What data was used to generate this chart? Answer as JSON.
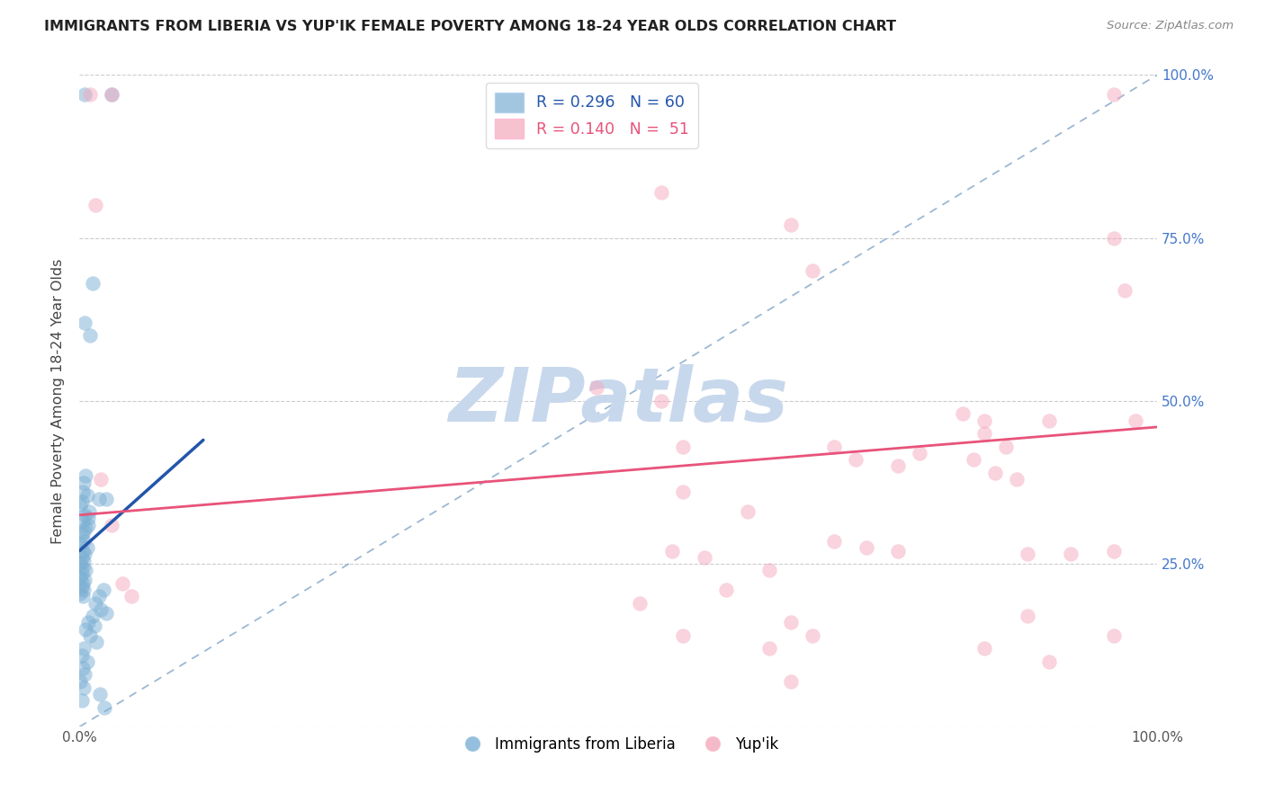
{
  "title": "IMMIGRANTS FROM LIBERIA VS YUP'IK FEMALE POVERTY AMONG 18-24 YEAR OLDS CORRELATION CHART",
  "source": "Source: ZipAtlas.com",
  "ylabel": "Female Poverty Among 18-24 Year Olds",
  "xlim": [
    0,
    1
  ],
  "ylim": [
    0,
    1
  ],
  "xticks": [
    0,
    0.25,
    0.5,
    0.75,
    1.0
  ],
  "yticks": [
    0,
    0.25,
    0.5,
    0.75,
    1.0
  ],
  "xticklabels": [
    "0.0%",
    "",
    "",
    "",
    "100.0%"
  ],
  "yticklabels_left": [
    "",
    "",
    "",
    "",
    ""
  ],
  "yticklabels_right": [
    "",
    "25.0%",
    "50.0%",
    "75.0%",
    "100.0%"
  ],
  "legend_blue_r": "R = 0.296",
  "legend_blue_n": "N = 60",
  "legend_pink_r": "R = 0.140",
  "legend_pink_n": "N =  51",
  "blue_scatter_color": "#7BAFD4",
  "pink_scatter_color": "#F4A8BC",
  "blue_line_color": "#2255AA",
  "pink_line_color": "#E8537A",
  "diagonal_color": "#9BB8D4",
  "watermark_text": "ZIPatlas",
  "watermark_color": "#C8D8EC",
  "blue_points": [
    [
      0.005,
      0.97
    ],
    [
      0.03,
      0.97
    ],
    [
      0.012,
      0.68
    ],
    [
      0.005,
      0.62
    ],
    [
      0.01,
      0.6
    ],
    [
      0.018,
      0.35
    ],
    [
      0.025,
      0.35
    ],
    [
      0.008,
      0.32
    ],
    [
      0.004,
      0.3
    ],
    [
      0.006,
      0.385
    ],
    [
      0.004,
      0.375
    ],
    [
      0.003,
      0.36
    ],
    [
      0.007,
      0.355
    ],
    [
      0.002,
      0.345
    ],
    [
      0.001,
      0.34
    ],
    [
      0.009,
      0.33
    ],
    [
      0.005,
      0.325
    ],
    [
      0.003,
      0.315
    ],
    [
      0.008,
      0.31
    ],
    [
      0.006,
      0.305
    ],
    [
      0.002,
      0.295
    ],
    [
      0.004,
      0.285
    ],
    [
      0.001,
      0.28
    ],
    [
      0.007,
      0.275
    ],
    [
      0.003,
      0.27
    ],
    [
      0.005,
      0.265
    ],
    [
      0.002,
      0.26
    ],
    [
      0.004,
      0.255
    ],
    [
      0.001,
      0.25
    ],
    [
      0.003,
      0.245
    ],
    [
      0.006,
      0.24
    ],
    [
      0.002,
      0.235
    ],
    [
      0.001,
      0.23
    ],
    [
      0.005,
      0.225
    ],
    [
      0.003,
      0.22
    ],
    [
      0.002,
      0.215
    ],
    [
      0.004,
      0.21
    ],
    [
      0.001,
      0.205
    ],
    [
      0.003,
      0.2
    ],
    [
      0.022,
      0.21
    ],
    [
      0.018,
      0.2
    ],
    [
      0.015,
      0.19
    ],
    [
      0.02,
      0.18
    ],
    [
      0.025,
      0.175
    ],
    [
      0.012,
      0.17
    ],
    [
      0.008,
      0.16
    ],
    [
      0.014,
      0.155
    ],
    [
      0.006,
      0.15
    ],
    [
      0.01,
      0.14
    ],
    [
      0.016,
      0.13
    ],
    [
      0.004,
      0.12
    ],
    [
      0.002,
      0.11
    ],
    [
      0.007,
      0.1
    ],
    [
      0.003,
      0.09
    ],
    [
      0.005,
      0.08
    ],
    [
      0.001,
      0.07
    ],
    [
      0.004,
      0.06
    ],
    [
      0.019,
      0.05
    ],
    [
      0.002,
      0.04
    ],
    [
      0.023,
      0.03
    ]
  ],
  "pink_points": [
    [
      0.01,
      0.97
    ],
    [
      0.03,
      0.97
    ],
    [
      0.015,
      0.8
    ],
    [
      0.54,
      0.82
    ],
    [
      0.96,
      0.97
    ],
    [
      0.66,
      0.77
    ],
    [
      0.68,
      0.7
    ],
    [
      0.96,
      0.75
    ],
    [
      0.97,
      0.67
    ],
    [
      0.48,
      0.52
    ],
    [
      0.54,
      0.5
    ],
    [
      0.98,
      0.47
    ],
    [
      0.56,
      0.43
    ],
    [
      0.82,
      0.48
    ],
    [
      0.84,
      0.47
    ],
    [
      0.9,
      0.47
    ],
    [
      0.84,
      0.45
    ],
    [
      0.86,
      0.43
    ],
    [
      0.78,
      0.42
    ],
    [
      0.83,
      0.41
    ],
    [
      0.76,
      0.4
    ],
    [
      0.85,
      0.39
    ],
    [
      0.87,
      0.38
    ],
    [
      0.02,
      0.38
    ],
    [
      0.7,
      0.43
    ],
    [
      0.72,
      0.41
    ],
    [
      0.03,
      0.31
    ],
    [
      0.04,
      0.22
    ],
    [
      0.048,
      0.2
    ],
    [
      0.56,
      0.36
    ],
    [
      0.62,
      0.33
    ],
    [
      0.7,
      0.285
    ],
    [
      0.73,
      0.275
    ],
    [
      0.76,
      0.27
    ],
    [
      0.55,
      0.27
    ],
    [
      0.58,
      0.26
    ],
    [
      0.64,
      0.24
    ],
    [
      0.88,
      0.265
    ],
    [
      0.92,
      0.265
    ],
    [
      0.88,
      0.17
    ],
    [
      0.96,
      0.14
    ],
    [
      0.66,
      0.16
    ],
    [
      0.68,
      0.14
    ],
    [
      0.52,
      0.19
    ],
    [
      0.6,
      0.21
    ],
    [
      0.56,
      0.14
    ],
    [
      0.64,
      0.12
    ],
    [
      0.66,
      0.07
    ],
    [
      0.84,
      0.12
    ],
    [
      0.9,
      0.1
    ],
    [
      0.96,
      0.27
    ]
  ],
  "blue_line": [
    [
      0.0,
      0.27
    ],
    [
      0.115,
      0.44
    ]
  ],
  "pink_line": [
    [
      0.0,
      0.325
    ],
    [
      1.0,
      0.46
    ]
  ],
  "diagonal_line": [
    [
      0.0,
      0.0
    ],
    [
      1.0,
      1.0
    ]
  ]
}
